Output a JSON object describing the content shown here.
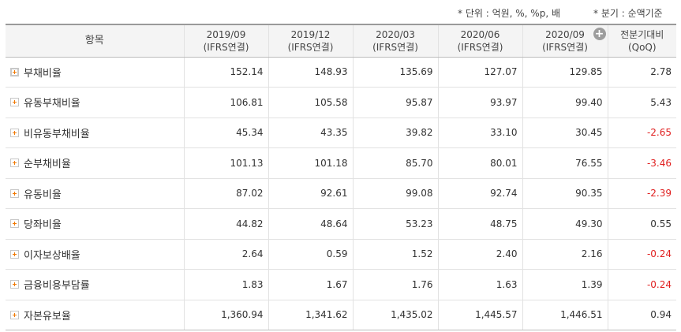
{
  "notes": {
    "unit": "* 단위 : 억원, %, %p, 배",
    "basis": "* 분기 : 순액기준"
  },
  "header": {
    "item": "항목",
    "periods": [
      {
        "date": "2019/09",
        "type": "(IFRS연결)"
      },
      {
        "date": "2019/12",
        "type": "(IFRS연결)"
      },
      {
        "date": "2020/03",
        "type": "(IFRS연결)"
      },
      {
        "date": "2020/06",
        "type": "(IFRS연결)"
      },
      {
        "date": "2020/09",
        "type": "(IFRS연결)"
      }
    ],
    "qoq": {
      "line1": "전분기대비",
      "line2": "(QoQ)"
    },
    "expand_glyph": "+"
  },
  "rows": [
    {
      "name": "부채비율",
      "values": [
        "152.14",
        "148.93",
        "135.69",
        "127.07",
        "129.85"
      ],
      "qoq": "2.78"
    },
    {
      "name": "유동부채비율",
      "values": [
        "106.81",
        "105.58",
        "95.87",
        "93.97",
        "99.40"
      ],
      "qoq": "5.43"
    },
    {
      "name": "비유동부채비율",
      "values": [
        "45.34",
        "43.35",
        "39.82",
        "33.10",
        "30.45"
      ],
      "qoq": "-2.65"
    },
    {
      "name": "순부채비율",
      "values": [
        "101.13",
        "101.18",
        "85.70",
        "80.01",
        "76.55"
      ],
      "qoq": "-3.46"
    },
    {
      "name": "유동비율",
      "values": [
        "87.02",
        "92.61",
        "99.08",
        "92.74",
        "90.35"
      ],
      "qoq": "-2.39"
    },
    {
      "name": "당좌비율",
      "values": [
        "44.82",
        "48.64",
        "53.23",
        "48.75",
        "49.30"
      ],
      "qoq": "0.55"
    },
    {
      "name": "이자보상배율",
      "values": [
        "2.64",
        "0.59",
        "1.52",
        "2.40",
        "2.16"
      ],
      "qoq": "-0.24"
    },
    {
      "name": "금융비용부담률",
      "values": [
        "1.83",
        "1.67",
        "1.76",
        "1.63",
        "1.39"
      ],
      "qoq": "-0.24"
    },
    {
      "name": "자본유보율",
      "values": [
        "1,360.94",
        "1,341.62",
        "1,435.02",
        "1,445.57",
        "1,446.51"
      ],
      "qoq": "0.94"
    }
  ],
  "colors": {
    "negative": "#e02020",
    "expand_icon": "#f07800",
    "header_bg": "#f4f4f4"
  },
  "icons": {
    "row_expand": "plus-square-icon",
    "column_expand": "plus-circle-icon"
  }
}
